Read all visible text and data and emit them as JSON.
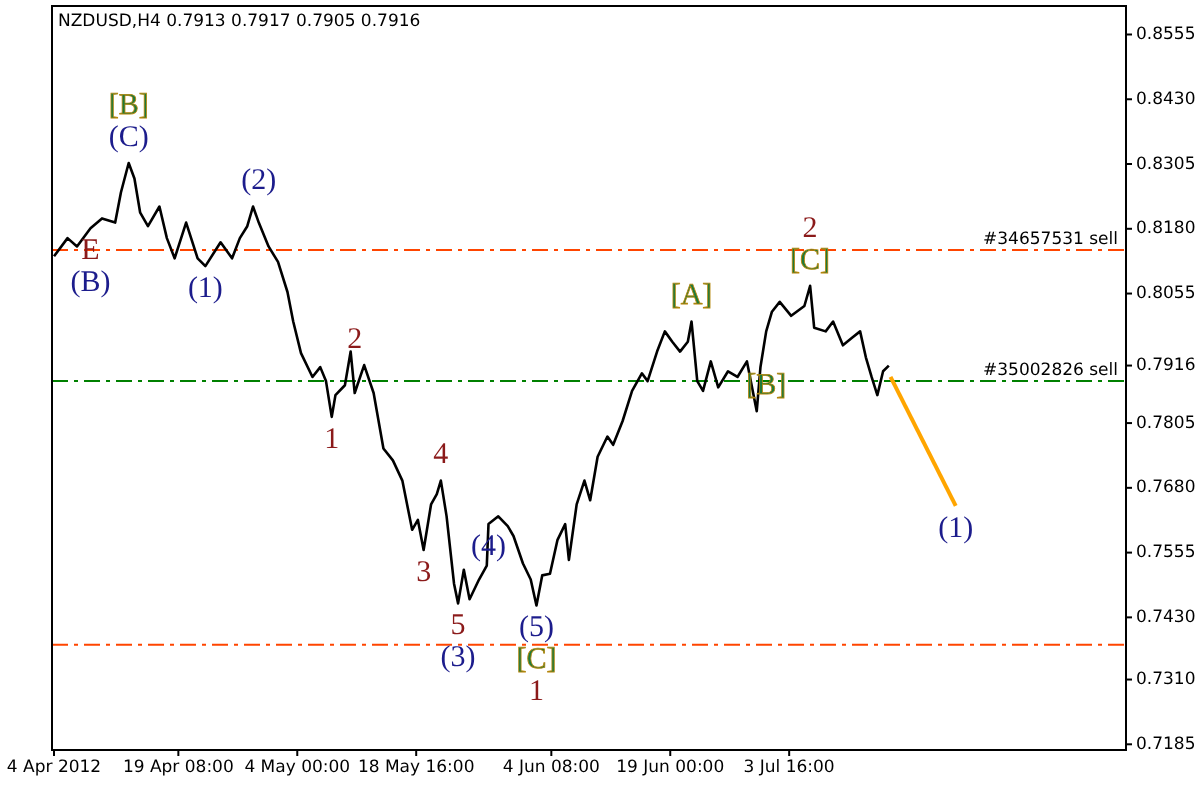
{
  "chart_data": {
    "type": "line",
    "title": "NZDUSD,H4  0.7913 0.7917 0.7905 0.7916",
    "xlim": [
      "2012-04-03T18:00",
      "2012-08-14T05:00"
    ],
    "xticks": [
      {
        "value": "2012-04-04T00:00",
        "label": "4 Apr 2012"
      },
      {
        "value": "2012-04-19T08:00",
        "label": "19 Apr 08:00"
      },
      {
        "value": "2012-05-04T00:00",
        "label": "4 May 00:00"
      },
      {
        "value": "2012-05-18T16:00",
        "label": "18 May 16:00"
      },
      {
        "value": "2012-06-04T08:00",
        "label": "4 Jun 08:00"
      },
      {
        "value": "2012-06-19T00:00",
        "label": "19 Jun 00:00"
      },
      {
        "value": "2012-07-03T16:00",
        "label": "3 Jul 16:00"
      }
    ],
    "ylim": [
      0.7174,
      0.861
    ],
    "yticks": [
      {
        "value": 0.7185,
        "label": "0.7185"
      },
      {
        "value": 0.731,
        "label": "0.7310"
      },
      {
        "value": 0.743,
        "label": "0.7430"
      },
      {
        "value": 0.7555,
        "label": "0.7555"
      },
      {
        "value": 0.768,
        "label": "0.7680"
      },
      {
        "value": 0.7805,
        "label": "0.7805"
      },
      {
        "value": 0.7916,
        "label": "0.7916"
      },
      {
        "value": 0.8055,
        "label": "0.8055"
      },
      {
        "value": 0.818,
        "label": "0.8180"
      },
      {
        "value": 0.8305,
        "label": "0.8305"
      },
      {
        "value": 0.843,
        "label": "0.8430"
      },
      {
        "value": 0.8555,
        "label": "0.8555"
      }
    ],
    "grid": false,
    "series": [
      {
        "color": "#000000",
        "x": [
          "2012-04-04T00:00",
          "2012-04-05T16:00",
          "2012-04-06T20:00",
          "2012-04-08T12:00",
          "2012-04-09T22:00",
          "2012-04-11T13:00",
          "2012-04-12T06:00",
          "2012-04-13T05:00",
          "2012-04-13T22:00",
          "2012-04-14T15:00",
          "2012-04-15T14:00",
          "2012-04-17T00:00",
          "2012-04-17T22:00",
          "2012-04-18T21:00",
          "2012-04-20T07:00",
          "2012-04-21T17:00",
          "2012-04-22T16:00",
          "2012-04-24T13:00",
          "2012-04-25T23:00",
          "2012-04-26T22:00",
          "2012-04-27T20:00",
          "2012-04-28T13:00",
          "2012-04-29T06:00",
          "2012-04-30T11:00",
          "2012-05-01T15:00",
          "2012-05-02T19:00",
          "2012-05-03T12:00",
          "2012-05-04T11:00",
          "2012-05-05T21:00",
          "2012-05-06T20:00",
          "2012-05-07T13:00",
          "2012-05-08T06:00",
          "2012-05-08T17:00",
          "2012-05-09T21:00",
          "2012-05-10T14:00",
          "2012-05-11T02:00",
          "2012-05-12T06:00",
          "2012-05-13T10:00",
          "2012-05-14T15:00",
          "2012-05-15T19:00",
          "2012-05-16T23:00",
          "2012-05-18T04:00",
          "2012-05-18T21:00",
          "2012-05-19T14:00",
          "2012-05-20T12:00",
          "2012-05-21T05:00",
          "2012-05-21T17:00",
          "2012-05-22T10:00",
          "2012-05-23T08:00",
          "2012-05-23T20:00",
          "2012-05-24T13:00",
          "2012-05-25T06:00",
          "2012-05-26T10:00",
          "2012-05-27T09:00",
          "2012-05-27T14:00",
          "2012-05-28T19:00",
          "2012-05-29T23:00",
          "2012-05-30T16:00",
          "2012-05-31T20:00",
          "2012-06-01T19:00",
          "2012-06-02T12:00",
          "2012-06-03T05:00",
          "2012-06-04T04:00",
          "2012-06-05T02:00",
          "2012-06-06T01:00",
          "2012-06-06T12:00",
          "2012-06-07T11:00",
          "2012-06-08T10:00",
          "2012-06-09T03:00",
          "2012-06-10T01:00",
          "2012-06-11T06:00",
          "2012-06-11T23:00",
          "2012-06-13T03:00",
          "2012-06-14T07:00",
          "2012-06-15T12:00",
          "2012-06-16T05:00",
          "2012-06-17T09:00",
          "2012-06-18T08:00",
          "2012-06-19T06:00",
          "2012-06-20T05:00",
          "2012-06-21T04:00",
          "2012-06-21T15:00",
          "2012-06-22T08:00",
          "2012-06-23T01:00",
          "2012-06-24T00:00",
          "2012-06-24T22:00",
          "2012-06-26T03:00",
          "2012-06-27T07:00",
          "2012-06-28T11:00",
          "2012-06-29T16:00",
          "2012-06-30T03:00",
          "2012-06-30T20:00",
          "2012-07-01T13:00",
          "2012-07-02T12:00",
          "2012-07-03T22:00",
          "2012-07-05T13:00",
          "2012-07-06T06:00",
          "2012-07-06T18:00",
          "2012-07-08T04:00",
          "2012-07-09T02:00",
          "2012-07-10T07:00",
          "2012-07-11T11:00",
          "2012-07-12T10:00",
          "2012-07-13T03:00",
          "2012-07-13T20:00",
          "2012-07-14T13:00",
          "2012-07-15T06:00",
          "2012-07-15T23:00"
        ],
        "values": [
          0.8127,
          0.8162,
          0.8146,
          0.8181,
          0.82,
          0.8192,
          0.825,
          0.8307,
          0.8277,
          0.8211,
          0.8185,
          0.8223,
          0.8162,
          0.8123,
          0.8192,
          0.8123,
          0.8108,
          0.8154,
          0.8123,
          0.8162,
          0.8185,
          0.8223,
          0.8192,
          0.8146,
          0.8116,
          0.8058,
          0.8001,
          0.794,
          0.7894,
          0.7913,
          0.7886,
          0.7817,
          0.7859,
          0.7878,
          0.7943,
          0.7863,
          0.7917,
          0.7863,
          0.7756,
          0.7733,
          0.7694,
          0.7599,
          0.7618,
          0.756,
          0.7648,
          0.7668,
          0.7694,
          0.7625,
          0.7495,
          0.7457,
          0.7522,
          0.7465,
          0.7503,
          0.753,
          0.761,
          0.7625,
          0.7606,
          0.7587,
          0.7534,
          0.7503,
          0.7453,
          0.7511,
          0.7514,
          0.7579,
          0.761,
          0.7541,
          0.7648,
          0.7694,
          0.7656,
          0.774,
          0.7779,
          0.7763,
          0.7809,
          0.7867,
          0.7901,
          0.7886,
          0.7943,
          0.7982,
          0.7962,
          0.7943,
          0.7962,
          0.8001,
          0.7886,
          0.7867,
          0.7924,
          0.7874,
          0.7905,
          0.7894,
          0.7924,
          0.7828,
          0.7913,
          0.7982,
          0.802,
          0.8039,
          0.8012,
          0.8031,
          0.807,
          0.7989,
          0.7982,
          0.8001,
          0.7955,
          0.797,
          0.7982,
          0.7932,
          0.7894,
          0.7859,
          0.7905,
          0.7916
        ]
      },
      {
        "color": "#ffa500",
        "x": [
          "2012-07-16T04:00",
          "2012-07-24T05:00"
        ],
        "values": [
          0.7894,
          0.7645
        ]
      }
    ],
    "ref_lines": [
      {
        "axis": "y",
        "value": 0.8139,
        "label": "#34657531 sell",
        "color": "#ff4500",
        "line_style": "dashed"
      },
      {
        "axis": "y",
        "value": 0.7886,
        "label": "#35002826 sell",
        "color": "#008000",
        "line_style": "dashed"
      },
      {
        "axis": "y",
        "value": 0.7377,
        "color": "#ff4500",
        "line_style": "dashed"
      }
    ],
    "annotations": [
      {
        "text": "[B]",
        "x": "2012-04-13T05:00",
        "y": 0.8307
      },
      {
        "text": "(C)",
        "x": "2012-04-13T05:00",
        "y": 0.8307
      },
      {
        "text": "E",
        "x": "2012-04-08T12:00",
        "y": 0.8181
      },
      {
        "text": "(B)",
        "x": "2012-04-08T12:00",
        "y": 0.8181
      },
      {
        "text": "(1)",
        "x": "2012-04-22T16:00",
        "y": 0.8108
      },
      {
        "text": "(2)",
        "x": "2012-04-29T06:00",
        "y": 0.8223
      },
      {
        "text": "2",
        "x": "2012-05-11T02:00",
        "y": 0.7917
      },
      {
        "text": "1",
        "x": "2012-05-08T06:00",
        "y": 0.7817
      },
      {
        "text": "4",
        "x": "2012-05-21T17:00",
        "y": 0.7694
      },
      {
        "text": "3",
        "x": "2012-05-19T14:00",
        "y": 0.756
      },
      {
        "text": "5",
        "x": "2012-05-23T20:00",
        "y": 0.7457
      },
      {
        "text": "(3)",
        "x": "2012-05-23T20:00",
        "y": 0.7457
      },
      {
        "text": "(4)",
        "x": "2012-05-27T14:00",
        "y": 0.761
      },
      {
        "text": "(5)",
        "x": "2012-06-02T12:00",
        "y": 0.7453
      },
      {
        "text": "[C]",
        "x": "2012-06-02T12:00",
        "y": 0.7453
      },
      {
        "text": "1",
        "x": "2012-06-02T12:00",
        "y": 0.7453
      },
      {
        "text": "[A]",
        "x": "2012-06-21T15:00",
        "y": 0.8001
      },
      {
        "text": "[B]",
        "x": "2012-06-30T20:00",
        "y": 0.7828
      },
      {
        "text": "2",
        "x": "2012-07-06T06:00",
        "y": 0.807
      },
      {
        "text": "[C]",
        "x": "2012-07-06T06:00",
        "y": 0.807
      },
      {
        "text": "(1)",
        "x": "2012-07-24T05:00",
        "y": 0.7645
      }
    ]
  }
}
